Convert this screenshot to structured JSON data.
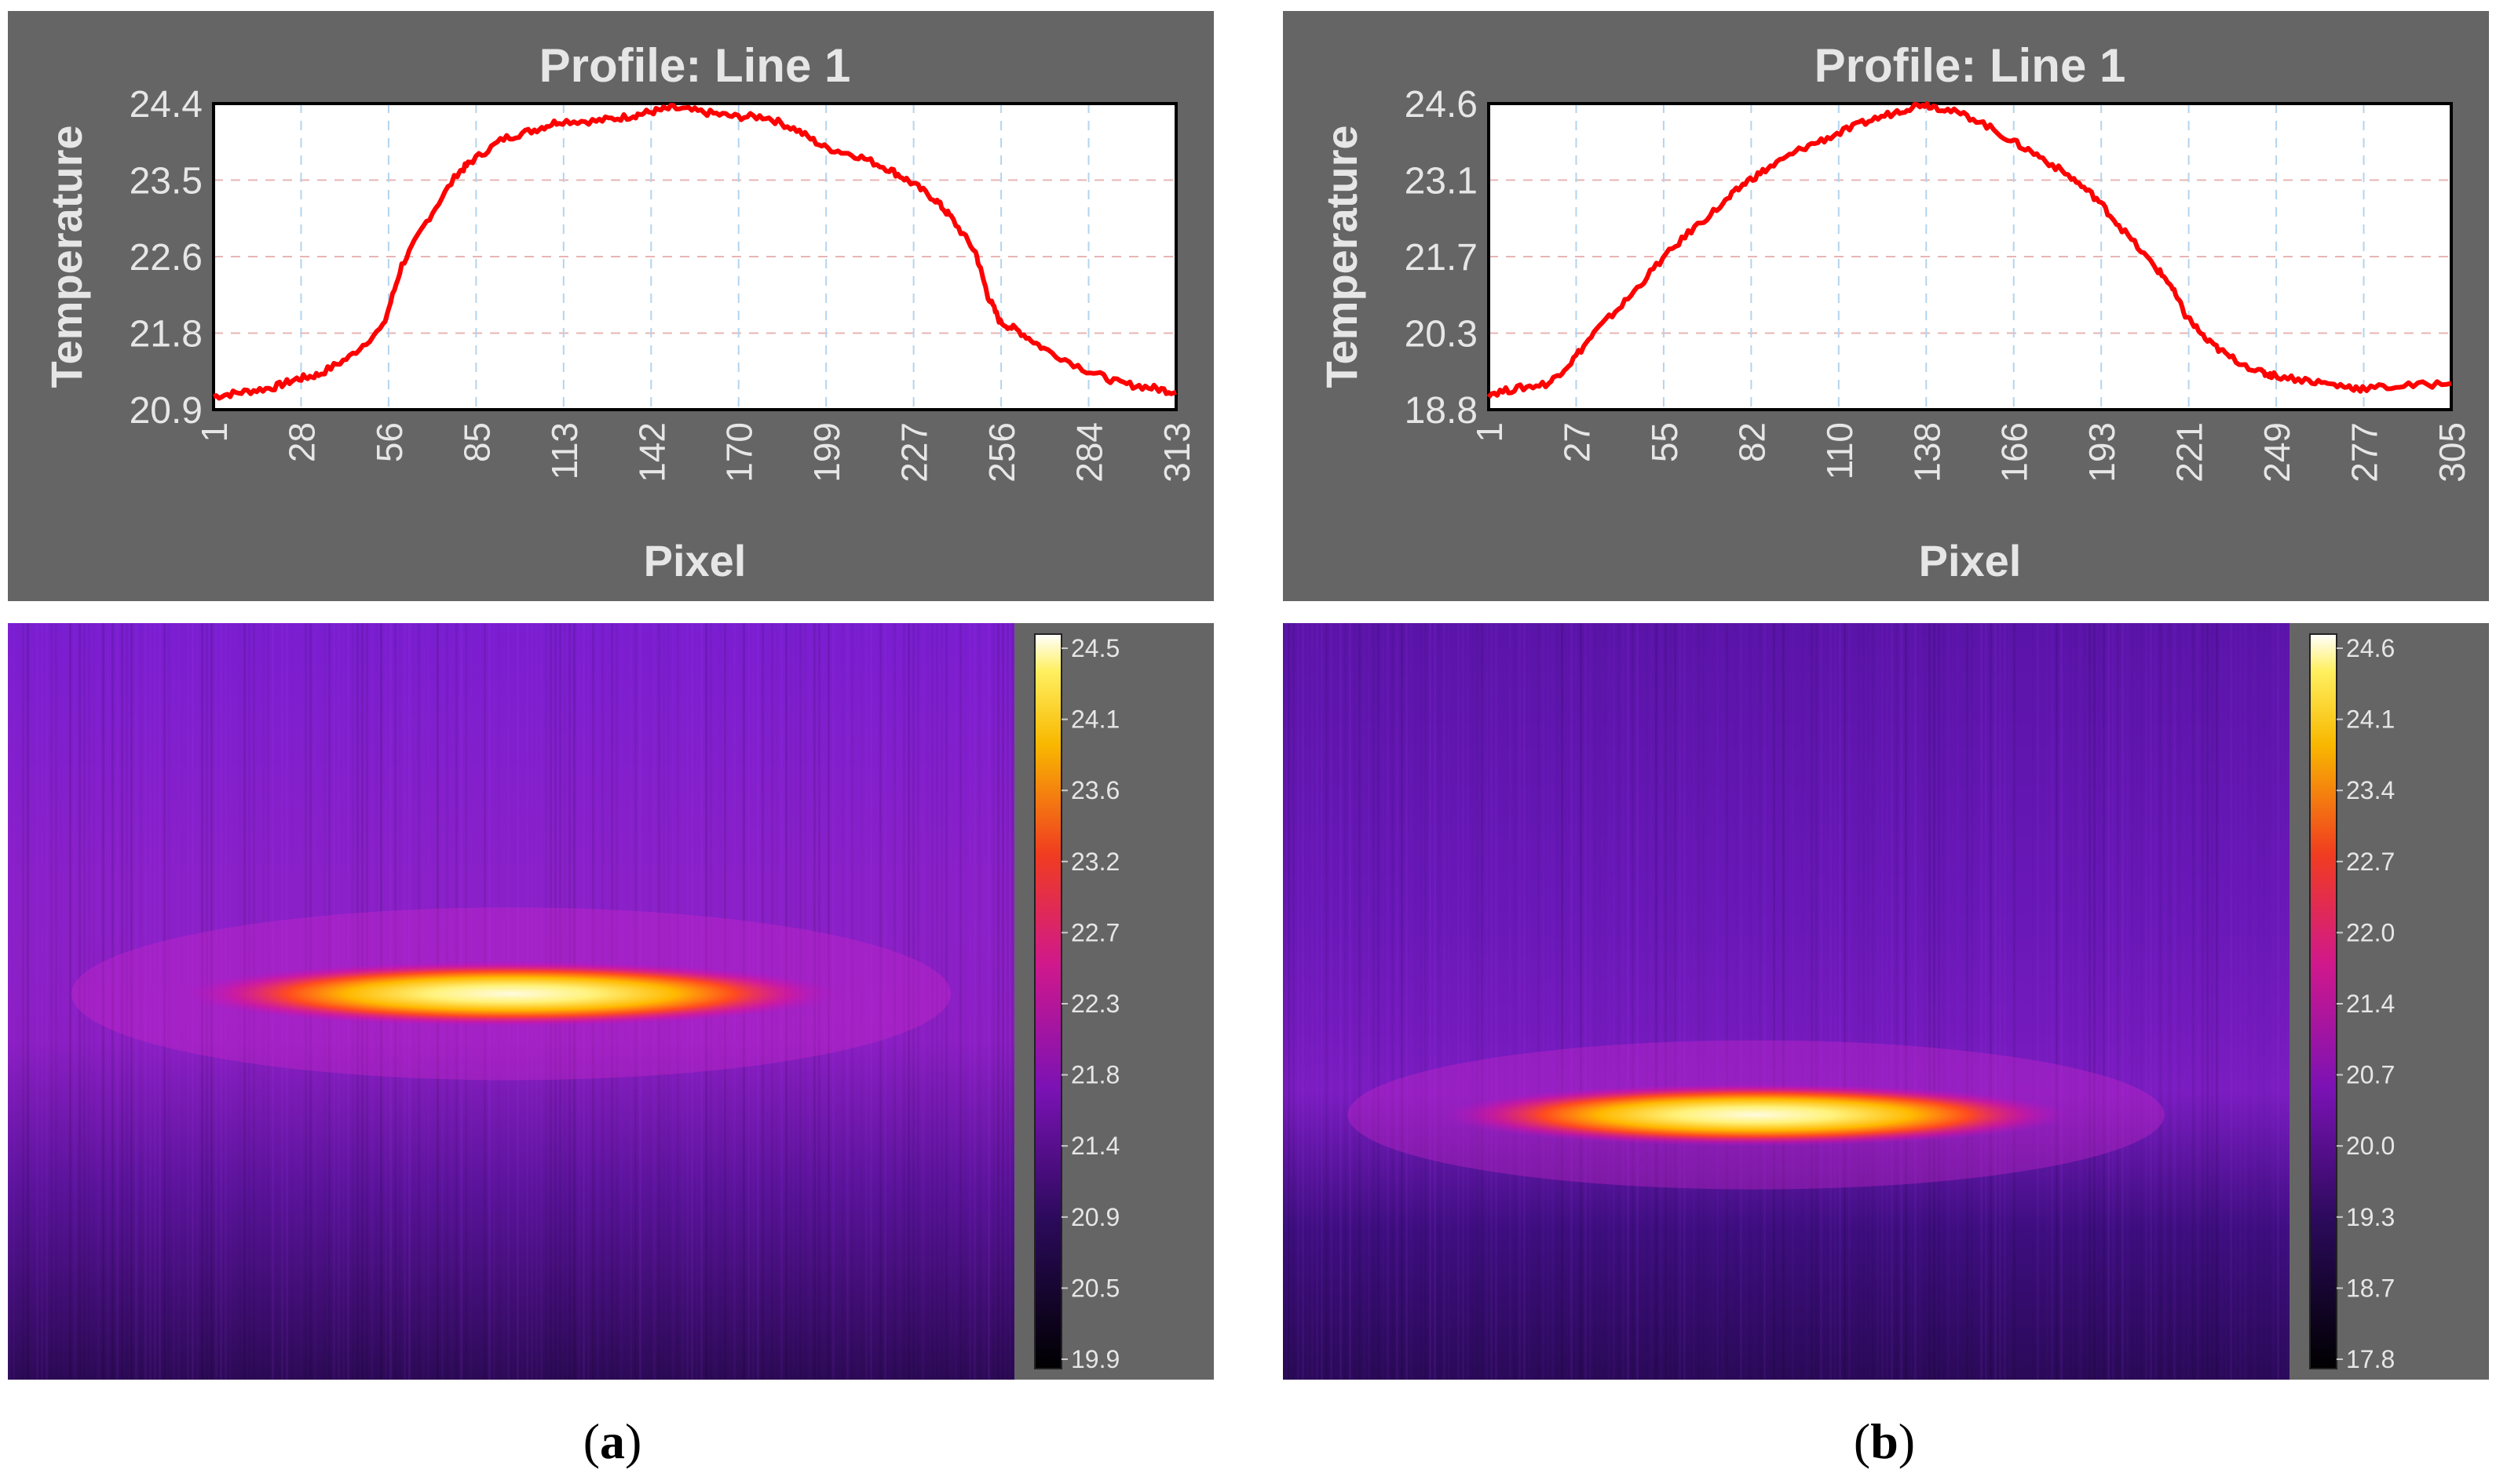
{
  "figure": {
    "panels": [
      {
        "caption_open": "(",
        "caption_letter": "a",
        "caption_close": ")",
        "colorbar": {
          "ticks": [
            "24.5",
            "24.1",
            "23.6",
            "23.2",
            "22.7",
            "22.3",
            "21.8",
            "21.4",
            "20.9",
            "20.5",
            "19.9"
          ],
          "min": 19.9,
          "max": 24.5
        },
        "hotspot": {
          "label": "heated laser track",
          "relative_row": 0.49,
          "relative_center": 0.5
        }
      },
      {
        "caption_open": "(",
        "caption_letter": "b",
        "caption_close": ")",
        "colorbar": {
          "ticks": [
            "24.6",
            "24.1",
            "23.4",
            "22.7",
            "22.0",
            "21.4",
            "20.7",
            "20.0",
            "19.3",
            "18.7",
            "17.8"
          ],
          "min": 17.8,
          "max": 24.6
        },
        "hotspot": {
          "label": "heated laser track",
          "relative_row": 0.65,
          "relative_center": 0.47
        }
      }
    ]
  },
  "chart_data": [
    {
      "type": "line",
      "title": "Profile: Line 1",
      "xlabel": "Pixel",
      "ylabel": "Temperature",
      "x_ticks": [
        "1",
        "28",
        "56",
        "85",
        "113",
        "142",
        "170",
        "199",
        "227",
        "256",
        "284",
        "313"
      ],
      "y_ticks": [
        "24.4",
        "23.5",
        "22.6",
        "21.8",
        "20.9"
      ],
      "xlim": [
        1,
        313
      ],
      "ylim": [
        20.9,
        24.4
      ],
      "grid": true,
      "series": [
        {
          "name": "Line 1",
          "color": "#ff0000",
          "x": [
            1,
            10,
            20,
            28,
            35,
            45,
            56,
            62,
            70,
            80,
            85,
            95,
            105,
            113,
            125,
            135,
            142,
            150,
            160,
            170,
            180,
            190,
            199,
            210,
            220,
            227,
            235,
            240,
            248,
            252,
            256,
            262,
            270,
            284,
            295,
            305,
            313
          ],
          "y": [
            21.05,
            21.1,
            21.15,
            21.25,
            21.3,
            21.5,
            21.85,
            22.55,
            23.05,
            23.6,
            23.75,
            24.0,
            24.1,
            24.2,
            24.2,
            24.25,
            24.3,
            24.35,
            24.3,
            24.25,
            24.25,
            24.1,
            23.9,
            23.8,
            23.65,
            23.5,
            23.3,
            23.1,
            22.7,
            22.2,
            21.9,
            21.8,
            21.6,
            21.35,
            21.2,
            21.15,
            21.1
          ]
        }
      ]
    },
    {
      "type": "line",
      "title": "Profile: Line 1",
      "xlabel": "Pixel",
      "ylabel": "Temperature",
      "x_ticks": [
        "1",
        "27",
        "55",
        "82",
        "110",
        "138",
        "166",
        "193",
        "221",
        "249",
        "277",
        "305"
      ],
      "y_ticks": [
        "24.6",
        "23.1",
        "21.7",
        "20.3",
        "18.8"
      ],
      "xlim": [
        1,
        305
      ],
      "ylim": [
        18.8,
        24.6
      ],
      "grid": true,
      "series": [
        {
          "name": "Line 1",
          "color": "#ff0000",
          "x": [
            1,
            10,
            20,
            27,
            35,
            45,
            55,
            65,
            75,
            82,
            90,
            100,
            110,
            120,
            130,
            138,
            145,
            155,
            166,
            175,
            185,
            193,
            200,
            210,
            216,
            221,
            228,
            235,
            245,
            249,
            260,
            270,
            277,
            290,
            305
          ],
          "y": [
            19.1,
            19.2,
            19.3,
            19.7,
            20.3,
            20.9,
            21.6,
            22.2,
            22.7,
            23.1,
            23.4,
            23.75,
            24.0,
            24.25,
            24.45,
            24.6,
            24.5,
            24.3,
            23.9,
            23.6,
            23.2,
            22.8,
            22.3,
            21.6,
            21.2,
            20.6,
            20.1,
            19.8,
            19.5,
            19.45,
            19.35,
            19.25,
            19.2,
            19.25,
            19.3
          ]
        }
      ]
    }
  ]
}
